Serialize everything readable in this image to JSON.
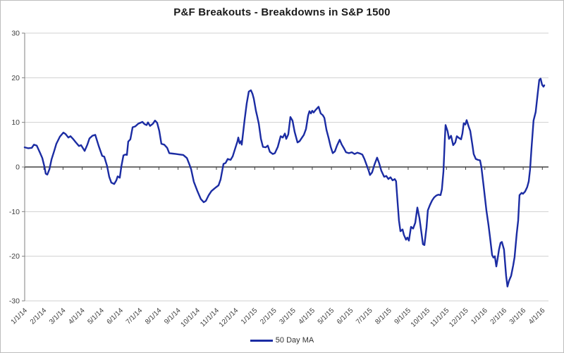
{
  "title": "P&F Breakouts - Breakdowns in S&P 1500",
  "legend": {
    "label": "50 Day MA"
  },
  "colors": {
    "line": "#1b2ca3",
    "grid": "#d0d0d0",
    "zero_axis": "#404040",
    "y_axis": "#808080",
    "text": "#3f3f3f",
    "border": "#bdbdbd"
  },
  "chart_data": {
    "type": "line",
    "title": "P&F Breakouts - Breakdowns in S&P 1500",
    "xlabel": "",
    "ylabel": "",
    "ylim": [
      -30,
      30
    ],
    "y_ticks": [
      30,
      20,
      10,
      0,
      -10,
      -20,
      -30
    ],
    "grid": "horizontal",
    "legend_position": "bottom-center",
    "x_tick_labels": [
      "1/1/14",
      "2/1/14",
      "3/1/14",
      "4/1/14",
      "5/1/14",
      "6/1/14",
      "7/1/14",
      "8/1/14",
      "9/1/14",
      "10/1/14",
      "11/1/14",
      "12/1/14",
      "1/1/15",
      "2/1/15",
      "3/1/15",
      "4/1/15",
      "5/1/15",
      "6/1/15",
      "7/1/15",
      "8/1/15",
      "9/1/15",
      "10/1/15",
      "11/1/15",
      "12/1/15",
      "1/1/16",
      "2/1/16",
      "3/1/16",
      "4/1/16"
    ],
    "x_range_months": [
      0,
      27.32
    ],
    "series": [
      {
        "name": "50 Day MA",
        "points": [
          [
            0,
            4.4
          ],
          [
            0.18,
            4.2
          ],
          [
            0.37,
            4.3
          ],
          [
            0.48,
            5
          ],
          [
            0.63,
            4.8
          ],
          [
            0.81,
            3.1
          ],
          [
            0.92,
            2
          ],
          [
            1.03,
            0.1
          ],
          [
            1.1,
            -1.5
          ],
          [
            1.18,
            -1.7
          ],
          [
            1.29,
            -0.5
          ],
          [
            1.4,
            1.7
          ],
          [
            1.54,
            3.6
          ],
          [
            1.65,
            5.2
          ],
          [
            1.84,
            6.8
          ],
          [
            2.02,
            7.7
          ],
          [
            2.13,
            7.4
          ],
          [
            2.28,
            6.6
          ],
          [
            2.39,
            6.9
          ],
          [
            2.54,
            6.2
          ],
          [
            2.65,
            5.6
          ],
          [
            2.83,
            4.7
          ],
          [
            2.94,
            4.9
          ],
          [
            3.13,
            3.6
          ],
          [
            3.27,
            5
          ],
          [
            3.38,
            6.4
          ],
          [
            3.53,
            7
          ],
          [
            3.68,
            7.2
          ],
          [
            3.86,
            4.7
          ],
          [
            4.04,
            2.5
          ],
          [
            4.15,
            2.3
          ],
          [
            4.3,
            0.2
          ],
          [
            4.41,
            -2.2
          ],
          [
            4.52,
            -3.5
          ],
          [
            4.67,
            -3.8
          ],
          [
            4.78,
            -3
          ],
          [
            4.85,
            -2.1
          ],
          [
            4.96,
            -2.4
          ],
          [
            5.04,
            0.1
          ],
          [
            5.15,
            2.6
          ],
          [
            5.26,
            2.8
          ],
          [
            5.33,
            2.7
          ],
          [
            5.4,
            5.7
          ],
          [
            5.51,
            6.2
          ],
          [
            5.63,
            8.9
          ],
          [
            5.77,
            9.1
          ],
          [
            5.92,
            9.7
          ],
          [
            6.14,
            10.1
          ],
          [
            6.25,
            9.6
          ],
          [
            6.36,
            9.4
          ],
          [
            6.43,
            10
          ],
          [
            6.54,
            9.2
          ],
          [
            6.69,
            9.7
          ],
          [
            6.8,
            10.4
          ],
          [
            6.91,
            9.9
          ],
          [
            7.02,
            8.1
          ],
          [
            7.13,
            5.2
          ],
          [
            7.28,
            5
          ],
          [
            7.43,
            4.3
          ],
          [
            7.54,
            3.1
          ],
          [
            7.72,
            3
          ],
          [
            7.9,
            2.9
          ],
          [
            8.09,
            2.8
          ],
          [
            8.27,
            2.7
          ],
          [
            8.46,
            2
          ],
          [
            8.57,
            0.8
          ],
          [
            8.68,
            -0.5
          ],
          [
            8.82,
            -3.3
          ],
          [
            9.01,
            -5.4
          ],
          [
            9.19,
            -7.2
          ],
          [
            9.34,
            -7.9
          ],
          [
            9.45,
            -7.6
          ],
          [
            9.6,
            -6.3
          ],
          [
            9.74,
            -5.4
          ],
          [
            9.93,
            -4.7
          ],
          [
            10.11,
            -4.1
          ],
          [
            10.22,
            -2.8
          ],
          [
            10.37,
            0.7
          ],
          [
            10.48,
            0.9
          ],
          [
            10.59,
            1.8
          ],
          [
            10.74,
            1.6
          ],
          [
            10.85,
            2.4
          ],
          [
            10.96,
            3.9
          ],
          [
            11.1,
            5.8
          ],
          [
            11.14,
            6.6
          ],
          [
            11.21,
            5.3
          ],
          [
            11.29,
            5.8
          ],
          [
            11.32,
            5
          ],
          [
            11.47,
            10.5
          ],
          [
            11.58,
            14.2
          ],
          [
            11.69,
            16.9
          ],
          [
            11.8,
            17.2
          ],
          [
            11.88,
            16.4
          ],
          [
            11.95,
            15.3
          ],
          [
            12.06,
            12.6
          ],
          [
            12.13,
            11.3
          ],
          [
            12.21,
            9.7
          ],
          [
            12.32,
            6.3
          ],
          [
            12.43,
            4.5
          ],
          [
            12.57,
            4.4
          ],
          [
            12.68,
            4.8
          ],
          [
            12.79,
            3.4
          ],
          [
            12.94,
            2.9
          ],
          [
            13.05,
            3.1
          ],
          [
            13.2,
            4.5
          ],
          [
            13.35,
            6.9
          ],
          [
            13.46,
            6.6
          ],
          [
            13.57,
            7.5
          ],
          [
            13.64,
            6.3
          ],
          [
            13.75,
            7.3
          ],
          [
            13.86,
            11.2
          ],
          [
            13.97,
            10.4
          ],
          [
            14.08,
            7.9
          ],
          [
            14.23,
            5.5
          ],
          [
            14.34,
            5.8
          ],
          [
            14.45,
            6.5
          ],
          [
            14.56,
            7.2
          ],
          [
            14.67,
            8.5
          ],
          [
            14.78,
            11.5
          ],
          [
            14.85,
            12.5
          ],
          [
            14.93,
            12
          ],
          [
            15,
            12.6
          ],
          [
            15.07,
            12.2
          ],
          [
            15.18,
            12.8
          ],
          [
            15.33,
            13.5
          ],
          [
            15.44,
            12
          ],
          [
            15.55,
            11.6
          ],
          [
            15.63,
            11
          ],
          [
            15.74,
            8.3
          ],
          [
            15.85,
            6.5
          ],
          [
            15.96,
            4.5
          ],
          [
            16.07,
            3.1
          ],
          [
            16.18,
            3.5
          ],
          [
            16.29,
            4.8
          ],
          [
            16.43,
            6.1
          ],
          [
            16.54,
            5
          ],
          [
            16.65,
            4.2
          ],
          [
            16.76,
            3.3
          ],
          [
            16.91,
            3.1
          ],
          [
            17.06,
            3.3
          ],
          [
            17.21,
            2.9
          ],
          [
            17.35,
            3.2
          ],
          [
            17.5,
            3
          ],
          [
            17.61,
            2.8
          ],
          [
            17.72,
            1.8
          ],
          [
            17.83,
            0.5
          ],
          [
            17.94,
            -0.8
          ],
          [
            18.01,
            -1.8
          ],
          [
            18.12,
            -1.2
          ],
          [
            18.24,
            0.5
          ],
          [
            18.38,
            2.1
          ],
          [
            18.49,
            0.8
          ],
          [
            18.6,
            -0.8
          ],
          [
            18.75,
            -2.2
          ],
          [
            18.86,
            -2
          ],
          [
            18.97,
            -2.7
          ],
          [
            19.08,
            -2.3
          ],
          [
            19.19,
            -3
          ],
          [
            19.3,
            -2.7
          ],
          [
            19.37,
            -3.2
          ],
          [
            19.45,
            -8
          ],
          [
            19.52,
            -12
          ],
          [
            19.6,
            -14.4
          ],
          [
            19.71,
            -14
          ],
          [
            19.78,
            -15.2
          ],
          [
            19.89,
            -16.3
          ],
          [
            19.96,
            -15.8
          ],
          [
            20.04,
            -16.5
          ],
          [
            20.15,
            -13.4
          ],
          [
            20.26,
            -13.8
          ],
          [
            20.37,
            -12.5
          ],
          [
            20.48,
            -9.1
          ],
          [
            20.59,
            -11.5
          ],
          [
            20.7,
            -15
          ],
          [
            20.77,
            -17.3
          ],
          [
            20.85,
            -17.5
          ],
          [
            20.96,
            -13.5
          ],
          [
            21.03,
            -9.7
          ],
          [
            21.14,
            -8.5
          ],
          [
            21.25,
            -7.5
          ],
          [
            21.36,
            -6.8
          ],
          [
            21.47,
            -6.4
          ],
          [
            21.58,
            -6.2
          ],
          [
            21.69,
            -6.3
          ],
          [
            21.76,
            -5
          ],
          [
            21.84,
            -1
          ],
          [
            21.91,
            6
          ],
          [
            21.95,
            9.4
          ],
          [
            22.06,
            8
          ],
          [
            22.13,
            6.3
          ],
          [
            22.24,
            7
          ],
          [
            22.35,
            4.9
          ],
          [
            22.46,
            5.5
          ],
          [
            22.54,
            6.9
          ],
          [
            22.65,
            6.5
          ],
          [
            22.76,
            6.2
          ],
          [
            22.83,
            7.5
          ],
          [
            22.9,
            9.8
          ],
          [
            22.98,
            9.5
          ],
          [
            23.05,
            10.5
          ],
          [
            23.16,
            9
          ],
          [
            23.24,
            8.1
          ],
          [
            23.35,
            5
          ],
          [
            23.42,
            2.9
          ],
          [
            23.53,
            1.8
          ],
          [
            23.64,
            1.6
          ],
          [
            23.75,
            1.5
          ],
          [
            23.82,
            0
          ],
          [
            23.93,
            -4
          ],
          [
            24.08,
            -9.7
          ],
          [
            24.19,
            -13
          ],
          [
            24.26,
            -15.4
          ],
          [
            24.38,
            -19.7
          ],
          [
            24.45,
            -20.3
          ],
          [
            24.52,
            -20
          ],
          [
            24.6,
            -22.3
          ],
          [
            24.67,
            -20.5
          ],
          [
            24.74,
            -18.5
          ],
          [
            24.82,
            -17
          ],
          [
            24.89,
            -16.8
          ],
          [
            25,
            -18.5
          ],
          [
            25.11,
            -24.4
          ],
          [
            25.18,
            -26.8
          ],
          [
            25.26,
            -25.5
          ],
          [
            25.37,
            -24.4
          ],
          [
            25.48,
            -22
          ],
          [
            25.55,
            -20.2
          ],
          [
            25.66,
            -15
          ],
          [
            25.74,
            -12
          ],
          [
            25.81,
            -6.3
          ],
          [
            25.92,
            -5.8
          ],
          [
            25.99,
            -6
          ],
          [
            26.1,
            -5.5
          ],
          [
            26.21,
            -4.5
          ],
          [
            26.29,
            -3.2
          ],
          [
            26.36,
            -0.5
          ],
          [
            26.43,
            4
          ],
          [
            26.54,
            10.4
          ],
          [
            26.65,
            12.3
          ],
          [
            26.76,
            16.6
          ],
          [
            26.84,
            19.5
          ],
          [
            26.91,
            19.8
          ],
          [
            26.99,
            18.4
          ],
          [
            27.06,
            18
          ],
          [
            27.1,
            18.3
          ]
        ]
      }
    ]
  }
}
